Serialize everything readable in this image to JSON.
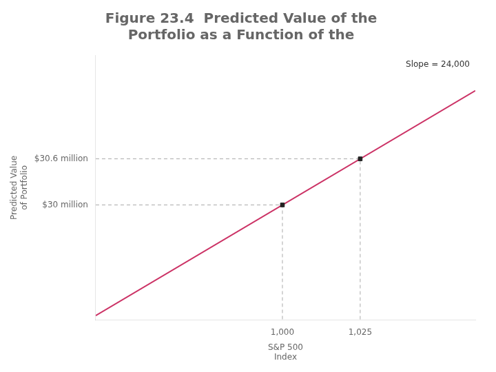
{
  "chart_data": {
    "type": "line",
    "title": [
      "Figure 23.4  Predicted Value of the",
      "Portfolio as a Function of the"
    ],
    "xlabel": [
      "S&P 500",
      "Index"
    ],
    "ylabel": [
      "Predicted Value",
      "of Portfolio"
    ],
    "annotations": [
      "Slope = 24,000"
    ],
    "xlim": [
      940,
      1062
    ],
    "ylim": [
      28.5,
      31.95
    ],
    "xticks": [
      {
        "value": 1000,
        "label": "1,000"
      },
      {
        "value": 1025,
        "label": "1,025"
      }
    ],
    "yticks": [
      {
        "value": 30,
        "label": "$30 million"
      },
      {
        "value": 30.6,
        "label": "$30.6 million"
      }
    ],
    "grid": false,
    "series": [
      {
        "type": "line",
        "color": "#cc3366",
        "line_style": "solid",
        "x": [
          940,
          1062
        ],
        "values": [
          28.56,
          31.488
        ]
      },
      {
        "type": "line",
        "color": "#aaaaaa",
        "line_style": "dashed",
        "x": [
          940,
          1000,
          1000
        ],
        "values": [
          30.0,
          30.0,
          28.5
        ]
      },
      {
        "type": "line",
        "color": "#aaaaaa",
        "line_style": "dashed",
        "x": [
          940,
          1025,
          1025
        ],
        "values": [
          30.6,
          30.6,
          28.5
        ]
      },
      {
        "type": "scatter",
        "color": "#222222",
        "marker": "square",
        "x": [
          1000,
          1025
        ],
        "values": [
          30.0,
          30.6
        ]
      }
    ]
  }
}
